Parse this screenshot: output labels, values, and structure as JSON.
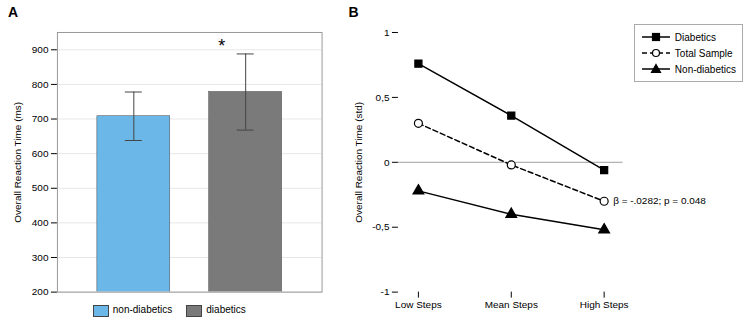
{
  "chart_data": [
    {
      "type": "bar",
      "title": "A",
      "categories": [
        "non-diabetics",
        "diabetics"
      ],
      "values": [
        708,
        778
      ],
      "errors": [
        70,
        110
      ],
      "colors": [
        "#6bb8e8",
        "#7a7a7a"
      ],
      "ylabel": "Overall Reaction Time (ms)",
      "ylim": [
        200,
        950
      ],
      "yticks": [
        200,
        300,
        400,
        500,
        600,
        700,
        800,
        900
      ],
      "grid": true,
      "legend": "bottom",
      "tick_labels": "y",
      "annotation": "*"
    },
    {
      "type": "line",
      "title": "B",
      "categories": [
        "Low Steps",
        "Mean Steps",
        "High Steps"
      ],
      "series": [
        {
          "name": "Diabetics",
          "color": "black",
          "marker": "square",
          "line_style": "solid",
          "values": [
            0.76,
            0.36,
            -0.06
          ]
        },
        {
          "name": "Total Sample",
          "color": "black",
          "marker": "open_circle",
          "line_style": "dashed",
          "values": [
            0.3,
            -0.02,
            -0.3
          ]
        },
        {
          "name": "Non-diabetics",
          "color": "black",
          "marker": "triangle",
          "line_style": "solid",
          "values": [
            -0.22,
            -0.4,
            -0.52
          ]
        }
      ],
      "ylabel": "Overall Reaction Time (std)",
      "ylim": [
        -1,
        1
      ],
      "yticks": [
        -1,
        {
          "value": -0.5,
          "label": "-0,5"
        },
        0,
        {
          "value": 0.5,
          "label": "0,5"
        },
        1
      ],
      "grid": false,
      "legend": "upper right",
      "annotation": "β = -.0282; p = 0.048"
    }
  ]
}
